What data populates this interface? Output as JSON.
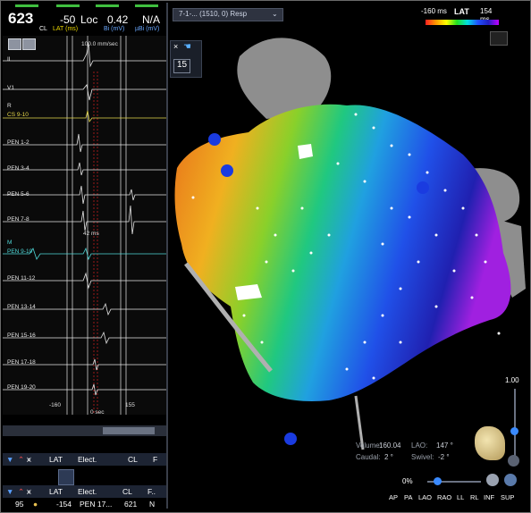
{
  "header": {
    "cl_value": "623",
    "cl_label": "CL",
    "lat_value": "-50",
    "lat_label": "LAT (ms)",
    "loc_label": "Loc",
    "bi_value": "0.42",
    "bi_label": "Bi (mV)",
    "ubi_value": "N/A",
    "ubi_label": "µBi (mV)"
  },
  "ecg": {
    "sweep_label": "100.0 mm/sec",
    "interval_label": "42 ms",
    "zero_label": "0 sec",
    "tick_left": "-160",
    "tick_right": "155",
    "channels": [
      {
        "name": "II",
        "color": "#e6e6e6"
      },
      {
        "name": "V1",
        "color": "#e6e6e6"
      },
      {
        "name": "R",
        "color": "#e6e6e6"
      },
      {
        "name": "CS 9-10",
        "color": "#e6d84a"
      },
      {
        "name": "PEN 1-2",
        "color": "#e6e6e6"
      },
      {
        "name": "PEN 3-4",
        "color": "#e6e6e6"
      },
      {
        "name": "PEN 5-6",
        "color": "#e6e6e6"
      },
      {
        "name": "PEN 7-8",
        "color": "#e6e6e6"
      },
      {
        "name": "M",
        "color": "#4fd8d8"
      },
      {
        "name": "PEN 9-10",
        "color": "#4fd8d8"
      },
      {
        "name": "PEN 11-12",
        "color": "#e6e6e6"
      },
      {
        "name": "PEN 13-14",
        "color": "#e6e6e6"
      },
      {
        "name": "PEN 15-16",
        "color": "#e6e6e6"
      },
      {
        "name": "PEN 17-18",
        "color": "#e6e6e6"
      },
      {
        "name": "PEN 19-20",
        "color": "#e6e6e6"
      }
    ]
  },
  "table": {
    "headers": [
      "LAT",
      "Elect.",
      "CL",
      "F"
    ],
    "headers2": [
      "LAT",
      "Elect.",
      "CL",
      "F.."
    ],
    "row": {
      "index": "95",
      "lat": "-154",
      "elect": "PEN 17...",
      "cl": "621",
      "flag": "N"
    }
  },
  "map": {
    "selector": "7-1-... (1510, 0) Resp",
    "legend_min": "-160 ms",
    "legend_title": "LAT",
    "legend_max": "154 ms",
    "side_count": "15",
    "volume_label": "Volume:",
    "volume_value": "160.04",
    "lao_label": "LAO:",
    "lao_value": "147 °",
    "caudal_label": "Caudal:",
    "caudal_value": "2 °",
    "swivel_label": "Swivel:",
    "swivel_value": "-2 °",
    "zoom_value": "1.00",
    "opacity_value": "0%",
    "views": [
      "AP",
      "PA",
      "LAO",
      "RAO",
      "LL",
      "RL",
      "INF",
      "SUP"
    ]
  },
  "colors": {
    "accent_green": "#3fbf3f",
    "header_yellow": "#e8d400",
    "header_blue": "#6aa8ff",
    "panel_bg": "#1d2433"
  }
}
